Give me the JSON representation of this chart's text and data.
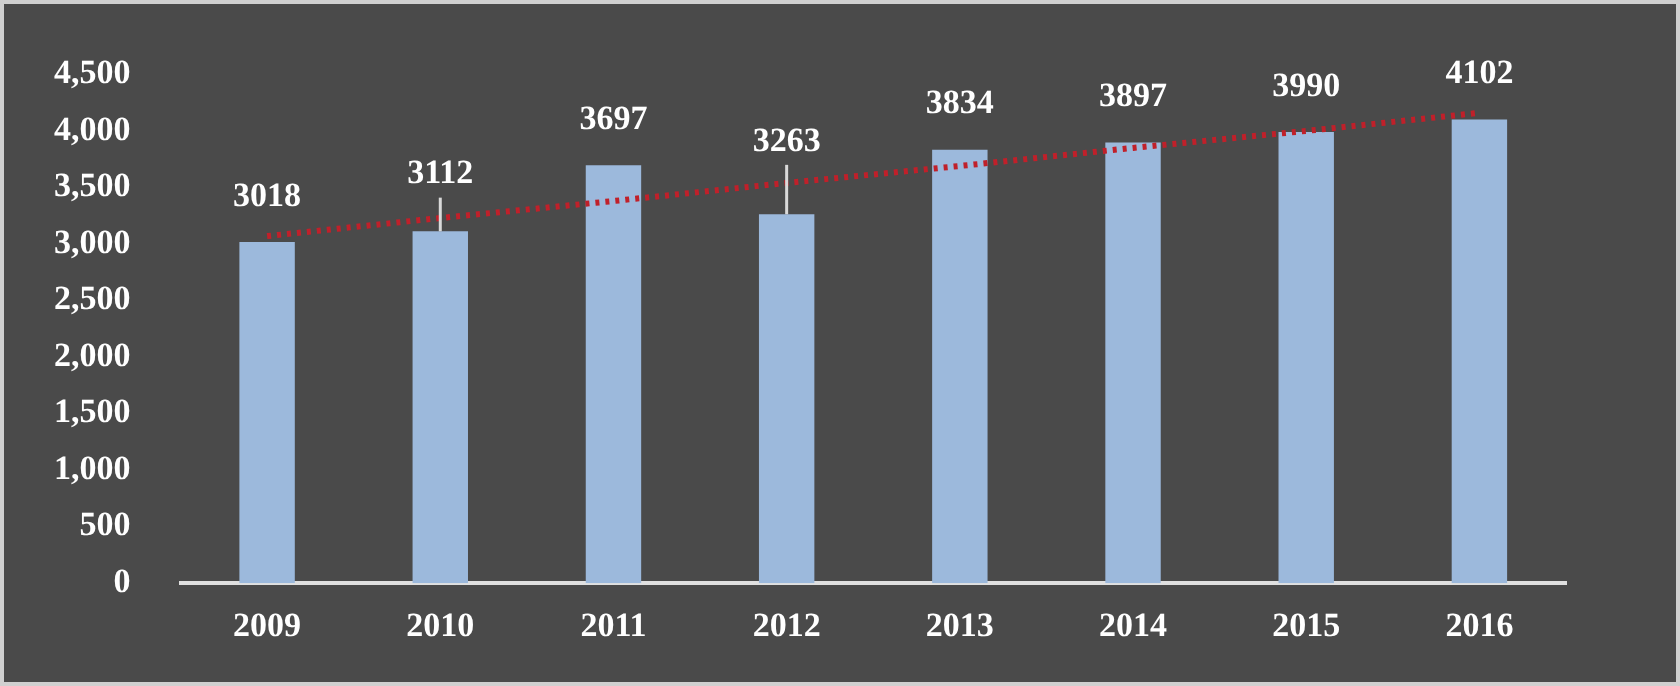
{
  "chart_data": {
    "type": "bar",
    "categories": [
      "2009",
      "2010",
      "2011",
      "2012",
      "2013",
      "2014",
      "2015",
      "2016"
    ],
    "series": [
      {
        "color": "#9cb9dc",
        "values": [
          3018,
          3112,
          3697,
          3263,
          3834,
          3897,
          3990,
          4102
        ],
        "value_labels": [
          "3018",
          "3112",
          "3697",
          "3263",
          "3834",
          "3897",
          "3990",
          "4102"
        ],
        "errors": [
          null,
          [
            3112,
            3410
          ],
          null,
          [
            3263,
            3700
          ],
          null,
          null,
          null,
          null
        ]
      },
      {
        "type": "line",
        "color": "#c0202a",
        "line_style": "dotted",
        "marker": "none",
        "values": [
          3070,
          3230,
          3380,
          3540,
          3690,
          3850,
          4000,
          4160
        ]
      }
    ],
    "ylim": [
      0,
      4500
    ],
    "yticks": [
      {
        "value": 0,
        "label": "0"
      },
      {
        "value": 500,
        "label": "500"
      },
      {
        "value": 1000,
        "label": "1,000"
      },
      {
        "value": 1500,
        "label": "1,500"
      },
      {
        "value": 2000,
        "label": "2,000"
      },
      {
        "value": 2500,
        "label": "2,500"
      },
      {
        "value": 3000,
        "label": "3,000"
      },
      {
        "value": 3500,
        "label": "3,500"
      },
      {
        "value": 4000,
        "label": "4,000"
      },
      {
        "value": 4500,
        "label": "4,500"
      }
    ],
    "grid": false,
    "legend": false
  }
}
